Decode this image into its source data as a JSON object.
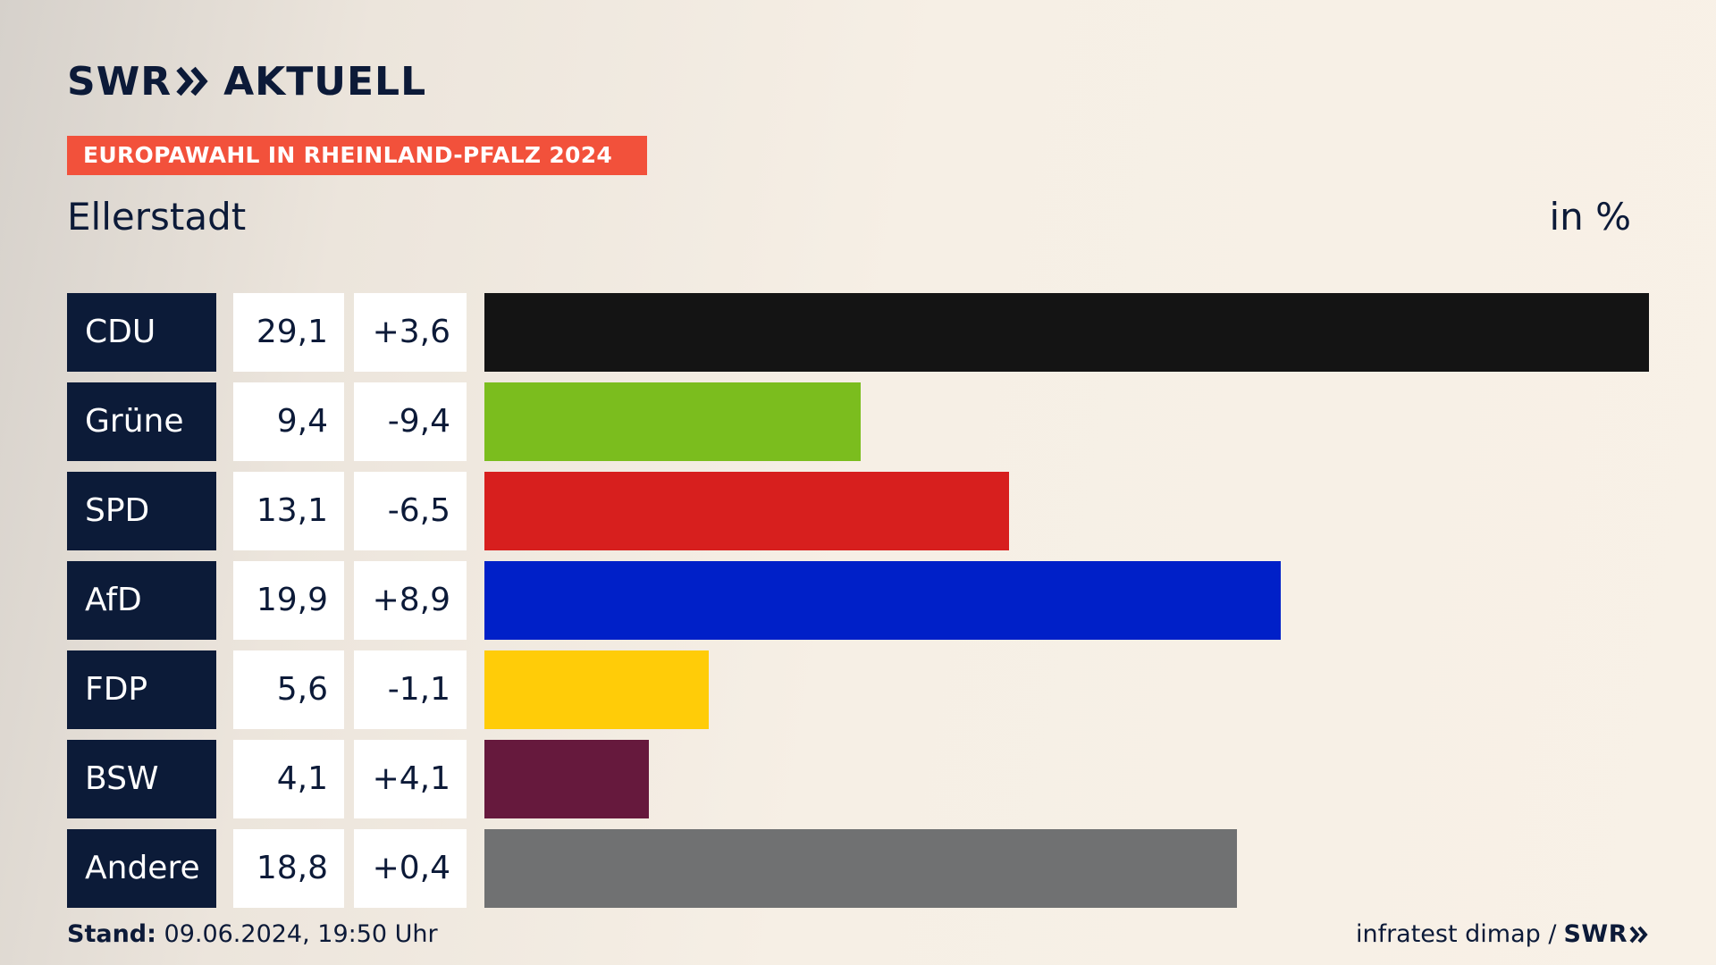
{
  "header": {
    "logo_left": "SWR",
    "logo_right": "AKTUELL",
    "banner": "EUROPAWAHL IN RHEINLAND-PFALZ 2024",
    "subtitle": "Ellerstadt",
    "unit": "in %"
  },
  "footer": {
    "stand_label": "Stand:",
    "stand_value": "09.06.2024, 19:50 Uhr",
    "source": "infratest dimap /",
    "source_logo": "SWR"
  },
  "colors": {
    "navy": "#0c1b38",
    "banner": "#f2513b"
  },
  "chart_data": {
    "type": "bar",
    "orientation": "horizontal",
    "categories": [
      "CDU",
      "Grüne",
      "SPD",
      "AfD",
      "FDP",
      "BSW",
      "Andere"
    ],
    "values": [
      29.1,
      9.4,
      13.1,
      19.9,
      5.6,
      4.1,
      18.8
    ],
    "value_labels": [
      "29,1",
      "9,4",
      "13,1",
      "19,9",
      "5,6",
      "4,1",
      "18,8"
    ],
    "changes": [
      3.6,
      -9.4,
      -6.5,
      8.9,
      -1.1,
      4.1,
      0.4
    ],
    "change_labels": [
      "+3,6",
      "-9,4",
      "-6,5",
      "+8,9",
      "-1,1",
      "+4,1",
      "+0,4"
    ],
    "colors": [
      "#141414",
      "#7bbd1e",
      "#d71f1e",
      "#0020c8",
      "#ffcc08",
      "#66193d",
      "#707172"
    ],
    "title": "Ellerstadt",
    "unit": "in %",
    "xlim": [
      0,
      29.1
    ]
  }
}
